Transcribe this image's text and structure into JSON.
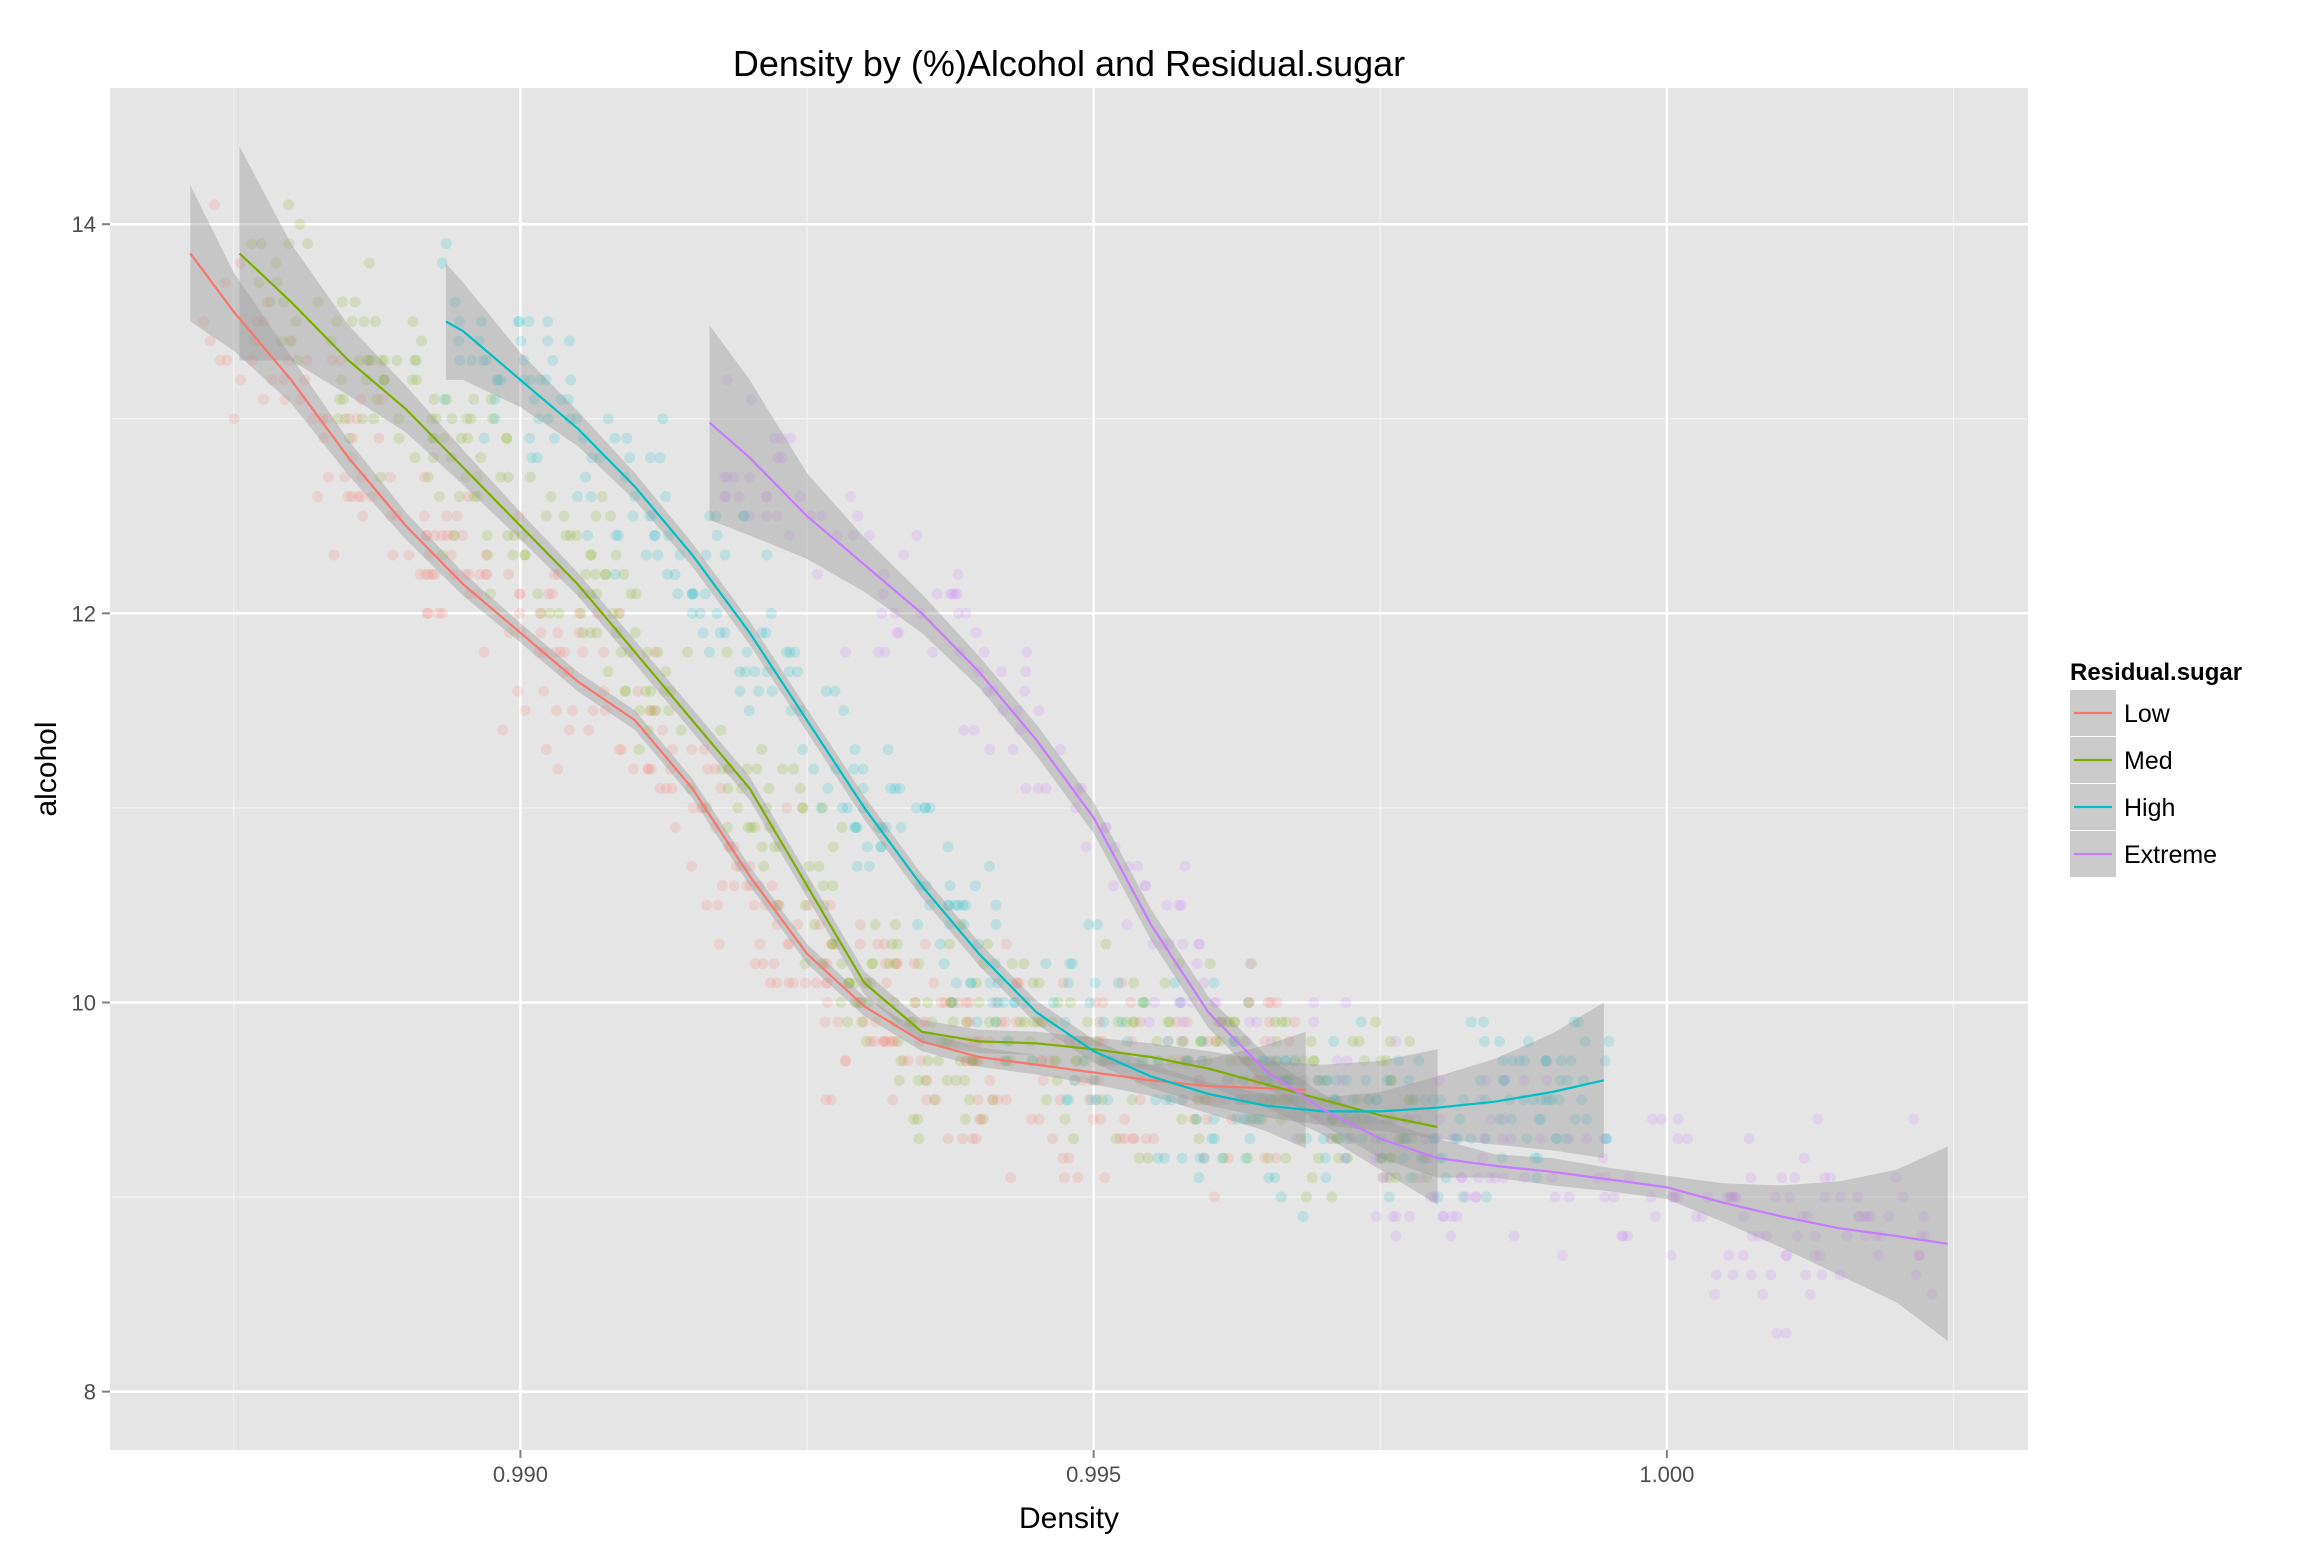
{
  "chart_data": {
    "type": "scatter",
    "title": "Density by (%)Alcohol and Residual.sugar",
    "xlabel": "Density",
    "ylabel": "alcohol",
    "xlim": [
      0.98642,
      1.00315
    ],
    "ylim": [
      7.7,
      14.7
    ],
    "x_ticks": [
      0.99,
      0.995,
      1.0
    ],
    "x_tick_labels": [
      "0.990",
      "0.995",
      "1.000"
    ],
    "y_ticks": [
      8,
      10,
      12,
      14
    ],
    "y_tick_labels": [
      "8",
      "10",
      "12",
      "14"
    ],
    "grid": true,
    "legend": {
      "title": "Residual.sugar",
      "position": "right"
    },
    "smoother": "loess with confidence band",
    "series": [
      {
        "name": "Low",
        "color": "#F8766D",
        "fit": [
          [
            0.98712,
            13.85
          ],
          [
            0.9875,
            13.55
          ],
          [
            0.988,
            13.2
          ],
          [
            0.9885,
            12.8
          ],
          [
            0.989,
            12.45
          ],
          [
            0.9895,
            12.15
          ],
          [
            0.99,
            11.9
          ],
          [
            0.9905,
            11.65
          ],
          [
            0.991,
            11.45
          ],
          [
            0.9915,
            11.1
          ],
          [
            0.992,
            10.65
          ],
          [
            0.9925,
            10.25
          ],
          [
            0.993,
            9.98
          ],
          [
            0.9935,
            9.8
          ],
          [
            0.994,
            9.72
          ],
          [
            0.9945,
            9.68
          ],
          [
            0.995,
            9.64
          ],
          [
            0.9955,
            9.6
          ],
          [
            0.996,
            9.57
          ],
          [
            0.9965,
            9.56
          ],
          [
            0.99685,
            9.55
          ]
        ],
        "band_half_width": [
          0.35,
          0.2,
          0.12,
          0.09,
          0.07,
          0.06,
          0.05,
          0.05,
          0.05,
          0.05,
          0.05,
          0.05,
          0.05,
          0.05,
          0.05,
          0.05,
          0.06,
          0.08,
          0.14,
          0.22,
          0.3
        ],
        "points": {
          "n": 380,
          "x_range": [
            0.9872,
            0.9968
          ]
        }
      },
      {
        "name": "Med",
        "color": "#7CAE00",
        "fit": [
          [
            0.98755,
            13.85
          ],
          [
            0.988,
            13.6
          ],
          [
            0.9885,
            13.3
          ],
          [
            0.989,
            13.05
          ],
          [
            0.9895,
            12.75
          ],
          [
            0.99,
            12.45
          ],
          [
            0.9905,
            12.15
          ],
          [
            0.991,
            11.8
          ],
          [
            0.9915,
            11.45
          ],
          [
            0.992,
            11.1
          ],
          [
            0.9925,
            10.6
          ],
          [
            0.993,
            10.1
          ],
          [
            0.9935,
            9.85
          ],
          [
            0.994,
            9.8
          ],
          [
            0.9945,
            9.79
          ],
          [
            0.995,
            9.76
          ],
          [
            0.9955,
            9.72
          ],
          [
            0.996,
            9.66
          ],
          [
            0.9965,
            9.58
          ],
          [
            0.997,
            9.5
          ],
          [
            0.9975,
            9.42
          ],
          [
            0.998,
            9.36
          ]
        ],
        "band_half_width": [
          0.55,
          0.3,
          0.18,
          0.12,
          0.09,
          0.07,
          0.06,
          0.06,
          0.06,
          0.06,
          0.06,
          0.06,
          0.06,
          0.06,
          0.06,
          0.06,
          0.07,
          0.09,
          0.12,
          0.18,
          0.28,
          0.4
        ],
        "points": {
          "n": 420,
          "x_range": [
            0.9876,
            0.998
          ]
        }
      },
      {
        "name": "High",
        "color": "#00BFC4",
        "fit": [
          [
            0.98935,
            13.5
          ],
          [
            0.9895,
            13.45
          ],
          [
            0.99,
            13.2
          ],
          [
            0.9905,
            12.95
          ],
          [
            0.991,
            12.65
          ],
          [
            0.9915,
            12.3
          ],
          [
            0.992,
            11.9
          ],
          [
            0.9925,
            11.45
          ],
          [
            0.993,
            11.0
          ],
          [
            0.9935,
            10.6
          ],
          [
            0.994,
            10.25
          ],
          [
            0.9945,
            9.95
          ],
          [
            0.995,
            9.75
          ],
          [
            0.9955,
            9.62
          ],
          [
            0.996,
            9.53
          ],
          [
            0.9965,
            9.47
          ],
          [
            0.997,
            9.44
          ],
          [
            0.9975,
            9.44
          ],
          [
            0.998,
            9.46
          ],
          [
            0.9985,
            9.49
          ],
          [
            0.999,
            9.54
          ],
          [
            0.99945,
            9.6
          ]
        ],
        "band_half_width": [
          0.3,
          0.25,
          0.14,
          0.09,
          0.07,
          0.06,
          0.06,
          0.06,
          0.06,
          0.06,
          0.06,
          0.06,
          0.06,
          0.06,
          0.06,
          0.06,
          0.07,
          0.1,
          0.16,
          0.22,
          0.3,
          0.4
        ],
        "points": {
          "n": 380,
          "x_range": [
            0.9893,
            0.9995
          ]
        }
      },
      {
        "name": "Extreme",
        "color": "#C77CFF",
        "fit": [
          [
            0.99165,
            12.98
          ],
          [
            0.992,
            12.8
          ],
          [
            0.9925,
            12.5
          ],
          [
            0.993,
            12.25
          ],
          [
            0.9935,
            12.0
          ],
          [
            0.994,
            11.7
          ],
          [
            0.9945,
            11.35
          ],
          [
            0.995,
            10.95
          ],
          [
            0.9955,
            10.4
          ],
          [
            0.996,
            9.95
          ],
          [
            0.9965,
            9.65
          ],
          [
            0.997,
            9.45
          ],
          [
            0.9975,
            9.3
          ],
          [
            0.998,
            9.2
          ],
          [
            0.9985,
            9.16
          ],
          [
            0.999,
            9.13
          ],
          [
            0.9995,
            9.09
          ],
          [
            1.0,
            9.05
          ],
          [
            1.0005,
            8.97
          ],
          [
            1.001,
            8.9
          ],
          [
            1.0015,
            8.84
          ],
          [
            1.002,
            8.8
          ],
          [
            1.00245,
            8.76
          ]
        ],
        "band_half_width": [
          0.5,
          0.4,
          0.22,
          0.14,
          0.1,
          0.08,
          0.08,
          0.08,
          0.08,
          0.08,
          0.08,
          0.08,
          0.1,
          0.1,
          0.06,
          0.07,
          0.06,
          0.06,
          0.1,
          0.16,
          0.24,
          0.34,
          0.5
        ],
        "points": {
          "n": 280,
          "x_range": [
            0.9917,
            1.0024
          ]
        }
      }
    ]
  }
}
